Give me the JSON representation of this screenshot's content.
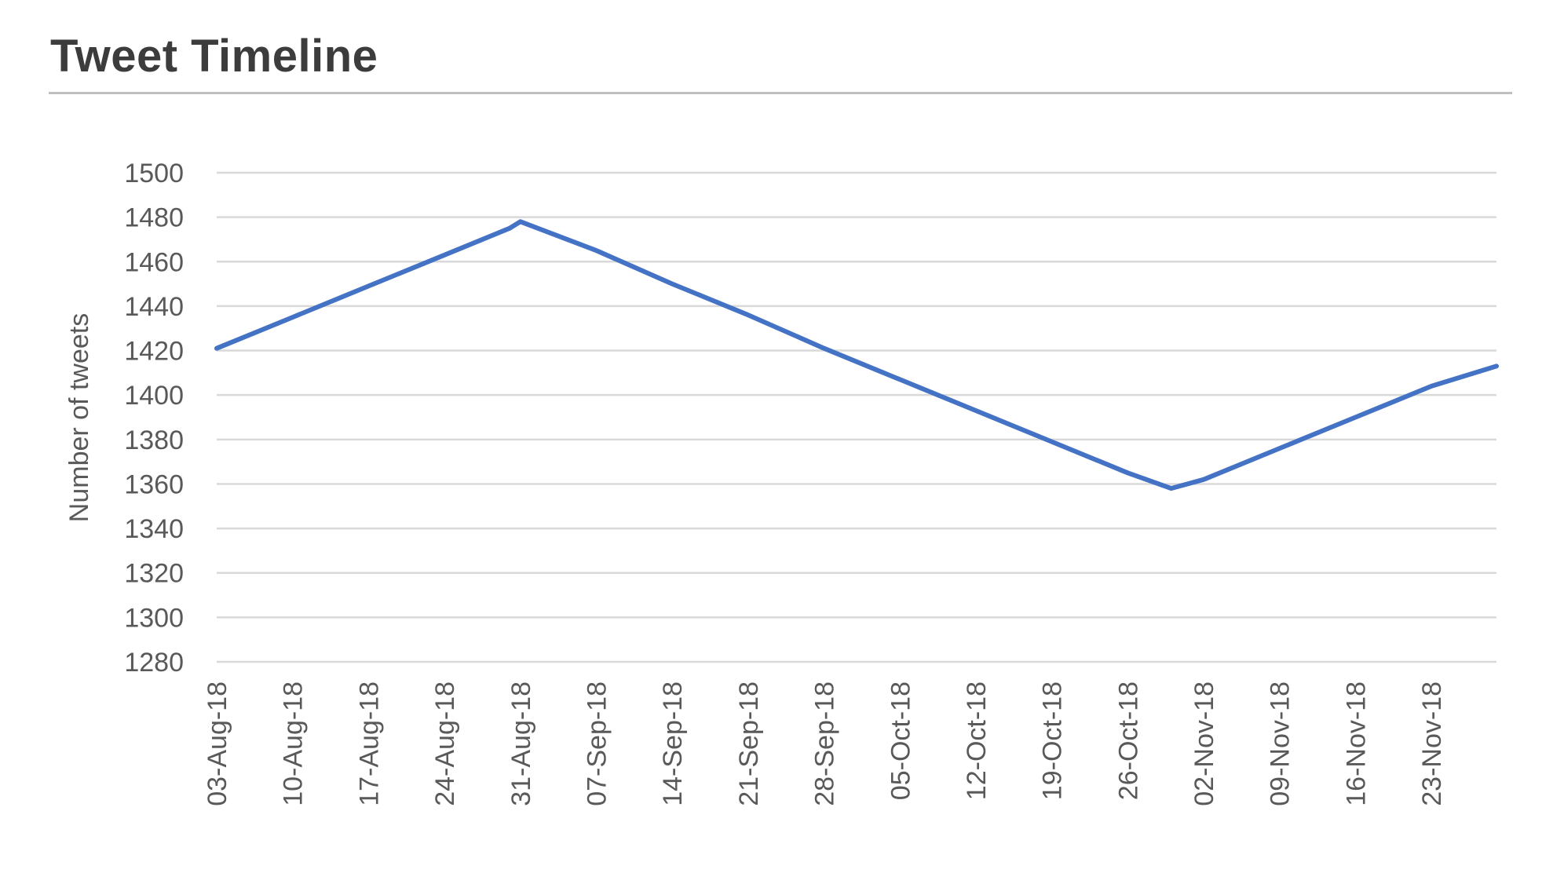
{
  "chart_data": {
    "type": "line",
    "title": "Tweet Timeline",
    "xlabel": "",
    "ylabel": "Number of tweets",
    "ylim": [
      1280,
      1500
    ],
    "yticks": [
      1500,
      1480,
      1460,
      1440,
      1420,
      1400,
      1380,
      1360,
      1340,
      1320,
      1300,
      1280
    ],
    "xlim": [
      "2018-08-03",
      "2018-11-29"
    ],
    "xtick_labels": [
      "03-Aug-18",
      "10-Aug-18",
      "17-Aug-18",
      "24-Aug-18",
      "31-Aug-18",
      "07-Sep-18",
      "14-Sep-18",
      "21-Sep-18",
      "28-Sep-18",
      "05-Oct-18",
      "12-Oct-18",
      "19-Oct-18",
      "26-Oct-18",
      "02-Nov-18",
      "09-Nov-18",
      "16-Nov-18",
      "23-Nov-18"
    ],
    "grid": true,
    "legend": "none",
    "line_color": "#4472c4",
    "series": [
      {
        "x": [
          "2018-08-03",
          "2018-08-10",
          "2018-08-17",
          "2018-08-24",
          "2018-08-30",
          "2018-08-31",
          "2018-09-07",
          "2018-09-14",
          "2018-09-21",
          "2018-09-28",
          "2018-10-05",
          "2018-10-12",
          "2018-10-19",
          "2018-10-26",
          "2018-10-30",
          "2018-11-02",
          "2018-11-09",
          "2018-11-16",
          "2018-11-23",
          "2018-11-29"
        ],
        "values": [
          1421,
          1435,
          1449,
          1463,
          1475,
          1478,
          1465,
          1450,
          1436,
          1421,
          1407,
          1393,
          1379,
          1365,
          1358,
          1362,
          1376,
          1390,
          1404,
          1413
        ]
      }
    ]
  }
}
